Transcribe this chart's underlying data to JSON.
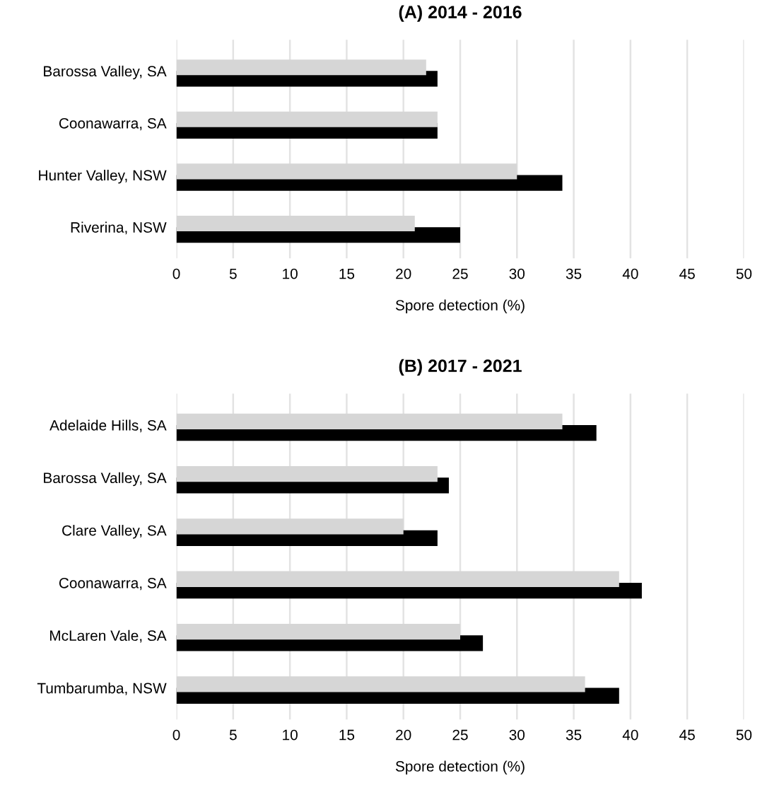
{
  "chart_data": [
    {
      "type": "bar",
      "orientation": "horizontal",
      "title": "(A) 2014 - 2016",
      "xlabel": "Spore detection (%)",
      "categories": [
        "Barossa Valley, SA",
        "Coonawarra, SA",
        "Hunter Valley, NSW",
        "Riverina, NSW"
      ],
      "series": [
        {
          "color": "#d6d6d6",
          "values": [
            22,
            23,
            30,
            21
          ]
        },
        {
          "color": "#000000",
          "values": [
            23,
            23,
            34,
            25
          ]
        }
      ],
      "xlim": [
        0,
        50
      ],
      "xticks": [
        0,
        5,
        10,
        15,
        20,
        25,
        30,
        35,
        40,
        45,
        50
      ],
      "grid": "x",
      "legend": false
    },
    {
      "type": "bar",
      "orientation": "horizontal",
      "title": "(B) 2017 - 2021",
      "xlabel": "Spore detection (%)",
      "categories": [
        "Adelaide Hills, SA",
        "Barossa Valley, SA",
        "Clare Valley, SA",
        "Coonawarra, SA",
        "McLaren Vale, SA",
        "Tumbarumba, NSW"
      ],
      "series": [
        {
          "color": "#d6d6d6",
          "values": [
            34,
            23,
            20,
            39,
            25,
            36
          ]
        },
        {
          "color": "#000000",
          "values": [
            37,
            24,
            23,
            41,
            27,
            39
          ]
        }
      ],
      "xlim": [
        0,
        50
      ],
      "xticks": [
        0,
        5,
        10,
        15,
        20,
        25,
        30,
        35,
        40,
        45,
        50
      ],
      "grid": "x",
      "legend": false
    }
  ]
}
